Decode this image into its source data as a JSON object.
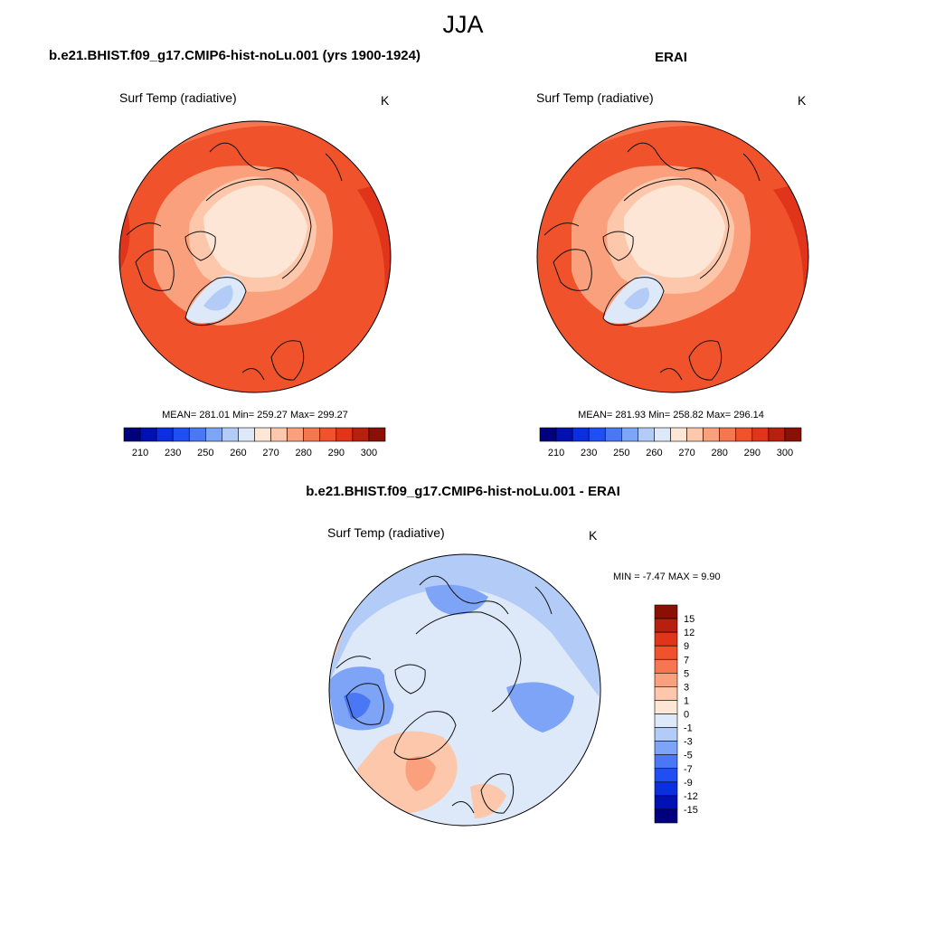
{
  "page": {
    "title": "JJA",
    "panels": [
      {
        "title": "b.e21.BHIST.f09_g17.CMIP6-hist-noLu.001 (yrs 1900-1924)",
        "variable": "Surf Temp (radiative)",
        "units": "K",
        "stats": "MEAN= 281.01  Min= 259.27  Max= 299.27"
      },
      {
        "title": "ERAI",
        "variable": "Surf Temp (radiative)",
        "units": "K",
        "stats": "MEAN= 281.93  Min= 258.82  Max= 296.14"
      },
      {
        "title": "b.e21.BHIST.f09_g17.CMIP6-hist-noLu.001 - ERAI",
        "variable": "Surf Temp (radiative)",
        "units": "K",
        "stats": "MIN =  -7.47 MAX =   9.90"
      }
    ]
  },
  "colorbars": {
    "absolute": {
      "colors": [
        "#00007f",
        "#0011b3",
        "#0a2ee0",
        "#1f4ff2",
        "#4a78f5",
        "#7ea4f7",
        "#b3ccf7",
        "#dde8f9",
        "#fde6d5",
        "#fcc7aa",
        "#fba07d",
        "#f6774f",
        "#f0522b",
        "#e0351a",
        "#b7200f",
        "#8a0f05"
      ],
      "labels": [
        "210",
        "230",
        "250",
        "260",
        "270",
        "280",
        "290",
        "300"
      ]
    },
    "difference": {
      "colors": [
        "#00007f",
        "#0011b3",
        "#0a2ee0",
        "#1f4ff2",
        "#4a78f5",
        "#7ea4f7",
        "#b3ccf7",
        "#dde8f9",
        "#fde6d5",
        "#fcc7aa",
        "#fba07d",
        "#f6774f",
        "#f0522b",
        "#e0351a",
        "#b7200f",
        "#8a0f05"
      ],
      "labels": [
        "15",
        "12",
        "9",
        "7",
        "5",
        "3",
        "1",
        "0",
        "-1",
        "-3",
        "-5",
        "-7",
        "-9",
        "-12",
        "-15"
      ]
    }
  }
}
